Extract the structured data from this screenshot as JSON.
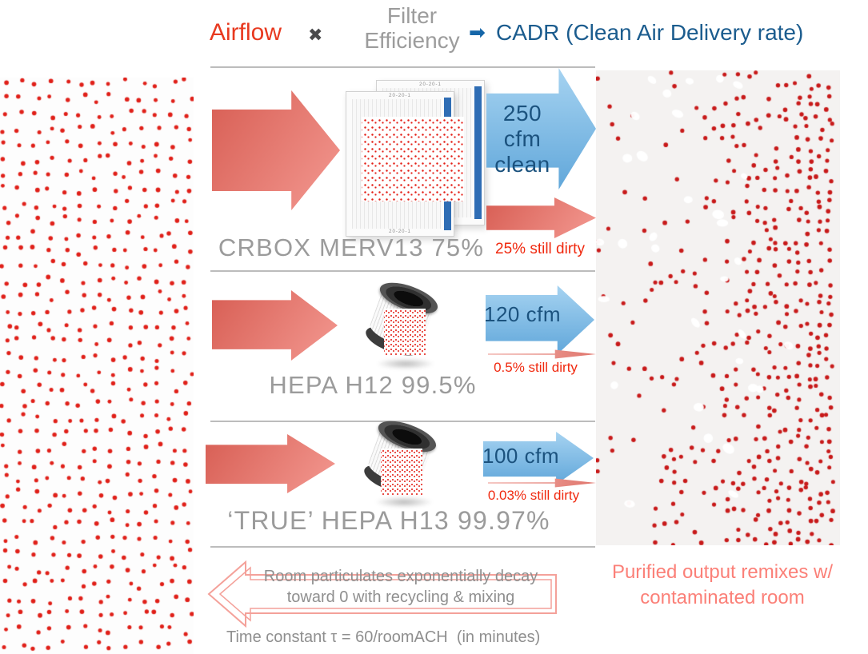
{
  "header": {
    "airflow": "Airflow",
    "times_glyph": "✖",
    "filter_line1": "Filter",
    "filter_line2": "Efficiency",
    "arrow_glyph": "➡",
    "cadr": "CADR (Clean Air Delivery rate)"
  },
  "rows": [
    {
      "label": "CRBOX MERV13 75%",
      "cadr_line1": "250 cfm",
      "cadr_line2": "clean",
      "dirty": "25% still dirty"
    },
    {
      "label": "HEPA H12 99.5%",
      "cadr_line1": "120 cfm",
      "dirty": "0.5% still dirty"
    },
    {
      "label": "‘TRUE’ HEPA H13 99.97%",
      "cadr_line1": "100 cfm",
      "dirty": "0.03% still dirty"
    }
  ],
  "filter_graphic": {
    "size_label": "20-20-1"
  },
  "footer": {
    "decay_line1": "Room particulates exponentially decay",
    "decay_line2": "toward 0 with recycling & mixing",
    "time_constant": "Time constant τ = 60/roomACH  (in minutes)",
    "remix_line1": "Purified output remixes w/",
    "remix_line2": "contaminated room"
  },
  "colors": {
    "airflow_red": "#e8391f",
    "gray_text": "#9c9c9c",
    "cadr_blue": "#1b5c8e",
    "dirty_red": "#f0290f",
    "salmon_dark": "#d96157",
    "salmon_light": "#f2968e",
    "blue_arrow_light": "#a6d3f1",
    "blue_arrow_dark": "#61a7da",
    "left_panel_dot": "#e02019",
    "right_panel_dot": "#c81a1a",
    "right_panel_bg": "#f4f2f1",
    "remix_pink": "#fb8078",
    "decay_outline": "#f4a19a"
  }
}
